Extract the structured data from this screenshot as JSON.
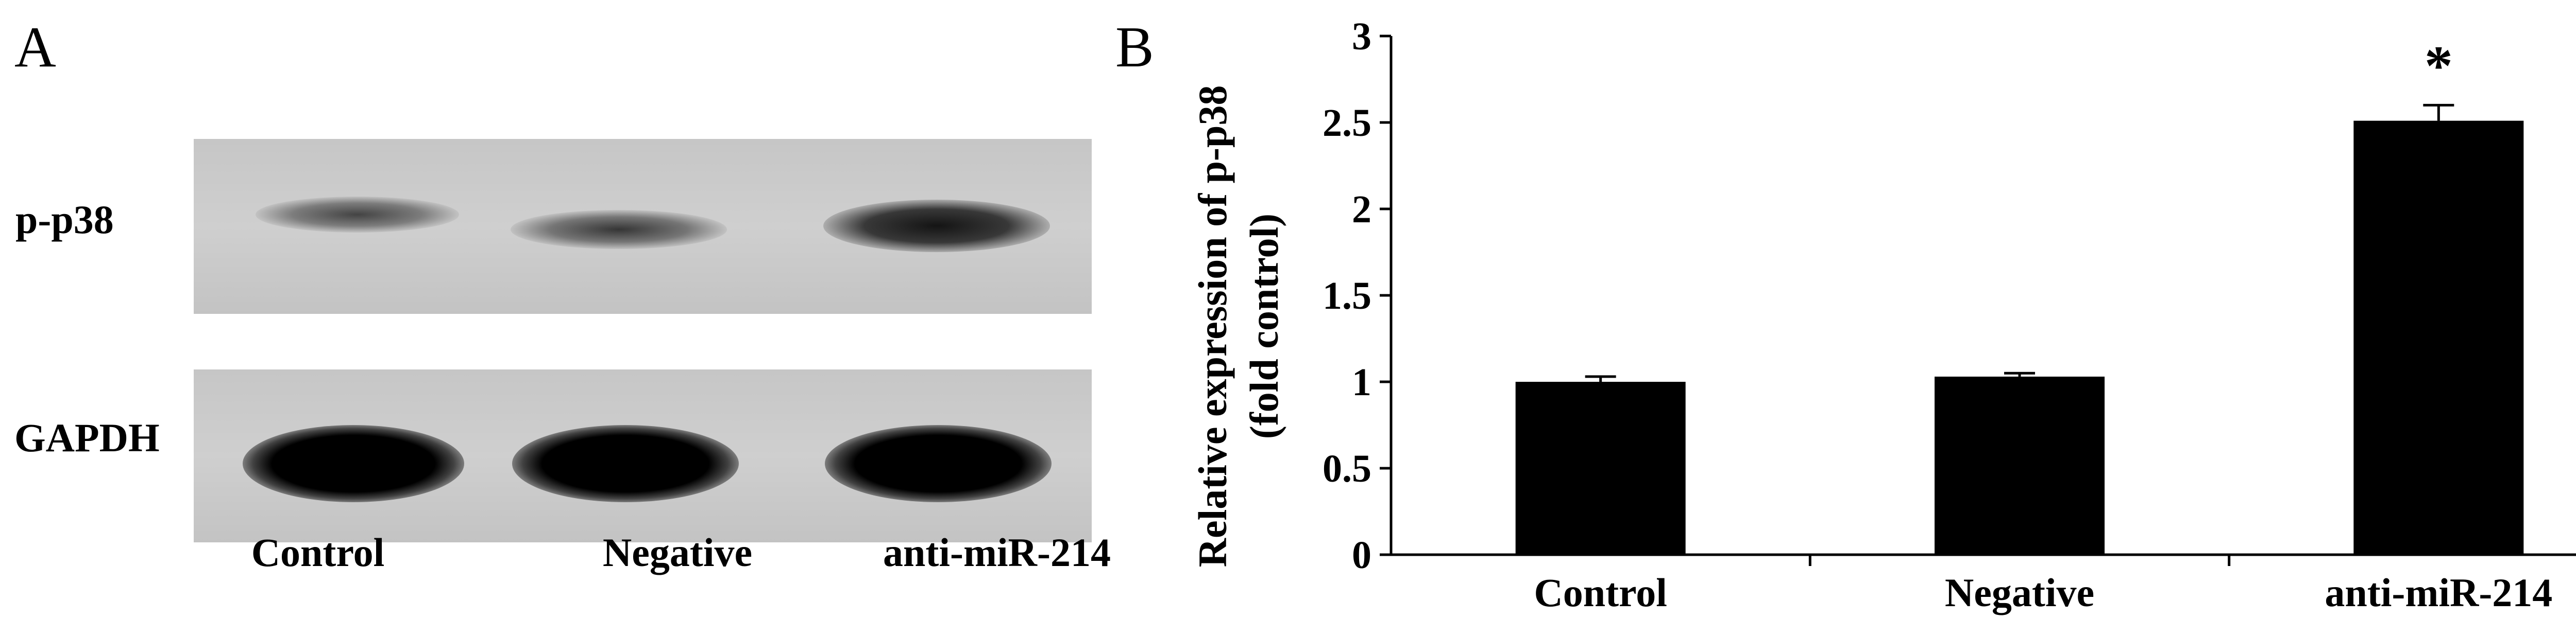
{
  "panels": {
    "a_letter": "A",
    "b_letter": "B"
  },
  "western_blot": {
    "rows": [
      {
        "label": "p-p38",
        "band_intensity": [
          0.45,
          0.55,
          0.9
        ]
      },
      {
        "label": "GAPDH",
        "band_intensity": [
          1.0,
          1.0,
          1.0
        ]
      }
    ],
    "lanes": [
      "Control",
      "Negative",
      "anti-miR-214"
    ]
  },
  "chart_data": {
    "type": "bar",
    "categories": [
      "Control",
      "Negative",
      "anti-miR-214"
    ],
    "values": [
      1.0,
      1.03,
      2.51
    ],
    "errors": [
      0.03,
      0.02,
      0.09
    ],
    "annotations": [
      "",
      "",
      "*"
    ],
    "title": "",
    "xlabel": "",
    "ylabel": "Relative expression of p-p38 (fold control)",
    "ylabel_lines": [
      "Relative expression of p-p38",
      "(fold control)"
    ],
    "ylim": [
      0,
      3
    ],
    "yticks": [
      "0",
      "0.5",
      "1",
      "1.5",
      "2",
      "2.5",
      "3"
    ],
    "ytick_values": [
      0,
      0.5,
      1,
      1.5,
      2,
      2.5,
      3
    ],
    "grid": false,
    "bar_color": "#000000"
  }
}
